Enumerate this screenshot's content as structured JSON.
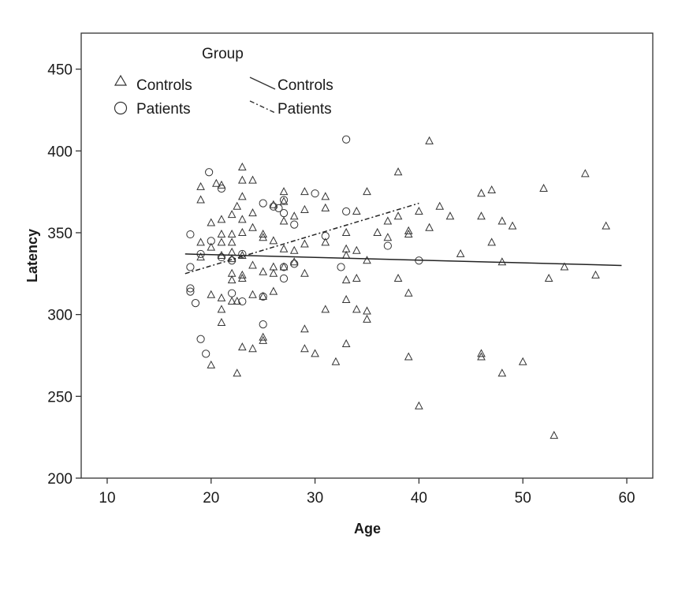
{
  "chart_data": {
    "type": "scatter",
    "xlabel": "Age",
    "ylabel": "Latency",
    "xlim": [
      7.5,
      62.5
    ],
    "ylim": [
      200,
      472
    ],
    "xticks": [
      10,
      20,
      30,
      40,
      50,
      60
    ],
    "yticks": [
      200,
      250,
      300,
      350,
      400,
      450
    ],
    "grid": false,
    "legend": {
      "title": "Group",
      "placement": "top-left",
      "marker_items": [
        {
          "label": "Controls",
          "marker": "triangle"
        },
        {
          "label": "Patients",
          "marker": "circle"
        }
      ],
      "line_items": [
        {
          "label": "Controls",
          "style": "solid"
        },
        {
          "label": "Patients",
          "style": "dashed"
        }
      ]
    },
    "series": [
      {
        "name": "Controls",
        "marker": "triangle",
        "points": [
          [
            19,
            378
          ],
          [
            19,
            370
          ],
          [
            19,
            344
          ],
          [
            19,
            335
          ],
          [
            20,
            356
          ],
          [
            20,
            341
          ],
          [
            20,
            312
          ],
          [
            20,
            269
          ],
          [
            20.5,
            380
          ],
          [
            21,
            379
          ],
          [
            21,
            358
          ],
          [
            21,
            349
          ],
          [
            21,
            344
          ],
          [
            21,
            336
          ],
          [
            21,
            310
          ],
          [
            21,
            303
          ],
          [
            21,
            295
          ],
          [
            22,
            361
          ],
          [
            22,
            349
          ],
          [
            22,
            344
          ],
          [
            22,
            338
          ],
          [
            22,
            334
          ],
          [
            22,
            325
          ],
          [
            22,
            321
          ],
          [
            22,
            308
          ],
          [
            22.5,
            366
          ],
          [
            22.5,
            308
          ],
          [
            22.5,
            264
          ],
          [
            23,
            390
          ],
          [
            23,
            382
          ],
          [
            23,
            372
          ],
          [
            23,
            358
          ],
          [
            23,
            350
          ],
          [
            23,
            336
          ],
          [
            23,
            324
          ],
          [
            23,
            322
          ],
          [
            23,
            280
          ],
          [
            24,
            382
          ],
          [
            24,
            362
          ],
          [
            24,
            353
          ],
          [
            24,
            330
          ],
          [
            24,
            312
          ],
          [
            24,
            279
          ],
          [
            25,
            349
          ],
          [
            25,
            347
          ],
          [
            25,
            326
          ],
          [
            25,
            311
          ],
          [
            25,
            286
          ],
          [
            25,
            284
          ],
          [
            26,
            345
          ],
          [
            26,
            329
          ],
          [
            26,
            325
          ],
          [
            26,
            314
          ],
          [
            26,
            367
          ],
          [
            27,
            375
          ],
          [
            27,
            369
          ],
          [
            27,
            357
          ],
          [
            27,
            340
          ],
          [
            27,
            329
          ],
          [
            28,
            360
          ],
          [
            28,
            339
          ],
          [
            28,
            332
          ],
          [
            29,
            375
          ],
          [
            29,
            364
          ],
          [
            29,
            343
          ],
          [
            29,
            325
          ],
          [
            29,
            291
          ],
          [
            29,
            279
          ],
          [
            30,
            276
          ],
          [
            31,
            372
          ],
          [
            31,
            365
          ],
          [
            31,
            344
          ],
          [
            31,
            303
          ],
          [
            32,
            271
          ],
          [
            33,
            350
          ],
          [
            33,
            340
          ],
          [
            33,
            336
          ],
          [
            33,
            321
          ],
          [
            33,
            309
          ],
          [
            33,
            282
          ],
          [
            34,
            363
          ],
          [
            34,
            339
          ],
          [
            34,
            322
          ],
          [
            34,
            303
          ],
          [
            35,
            375
          ],
          [
            35,
            333
          ],
          [
            35,
            302
          ],
          [
            35,
            297
          ],
          [
            36,
            350
          ],
          [
            37,
            357
          ],
          [
            37,
            347
          ],
          [
            38,
            387
          ],
          [
            38,
            360
          ],
          [
            38,
            322
          ],
          [
            39,
            351
          ],
          [
            39,
            349
          ],
          [
            39,
            313
          ],
          [
            39,
            274
          ],
          [
            40,
            363
          ],
          [
            40,
            244
          ],
          [
            41,
            406
          ],
          [
            41,
            353
          ],
          [
            42,
            366
          ],
          [
            43,
            360
          ],
          [
            44,
            337
          ],
          [
            46,
            374
          ],
          [
            46,
            360
          ],
          [
            46,
            276
          ],
          [
            46,
            274
          ],
          [
            47,
            376
          ],
          [
            47,
            344
          ],
          [
            48,
            357
          ],
          [
            48,
            332
          ],
          [
            48,
            264
          ],
          [
            49,
            354
          ],
          [
            50,
            271
          ],
          [
            52,
            377
          ],
          [
            52.5,
            322
          ],
          [
            53,
            226
          ],
          [
            54,
            329
          ],
          [
            56,
            386
          ],
          [
            57,
            324
          ],
          [
            58,
            354
          ]
        ]
      },
      {
        "name": "Patients",
        "marker": "circle",
        "points": [
          [
            18,
            349
          ],
          [
            18,
            329
          ],
          [
            18,
            316
          ],
          [
            18,
            314
          ],
          [
            18.5,
            307
          ],
          [
            19,
            337
          ],
          [
            19,
            285
          ],
          [
            19.5,
            276
          ],
          [
            19.8,
            387
          ],
          [
            20,
            345
          ],
          [
            21,
            377
          ],
          [
            21,
            335
          ],
          [
            22,
            333
          ],
          [
            22,
            313
          ],
          [
            23,
            337
          ],
          [
            23,
            308
          ],
          [
            25,
            368
          ],
          [
            25,
            311
          ],
          [
            25,
            294
          ],
          [
            26,
            366
          ],
          [
            26.5,
            365
          ],
          [
            27,
            370
          ],
          [
            27,
            362
          ],
          [
            27,
            329
          ],
          [
            27,
            322
          ],
          [
            28,
            355
          ],
          [
            28,
            331
          ],
          [
            30,
            374
          ],
          [
            31,
            348
          ],
          [
            32.5,
            329
          ],
          [
            33,
            407
          ],
          [
            33,
            363
          ],
          [
            37,
            342
          ],
          [
            40,
            333
          ]
        ]
      }
    ],
    "fit_lines": [
      {
        "name": "Controls",
        "style": "solid",
        "x": [
          17.5,
          59.5
        ],
        "y": [
          337,
          330
        ]
      },
      {
        "name": "Patients",
        "style": "dashed",
        "x": [
          17.5,
          40
        ],
        "y": [
          325,
          368
        ]
      }
    ]
  }
}
